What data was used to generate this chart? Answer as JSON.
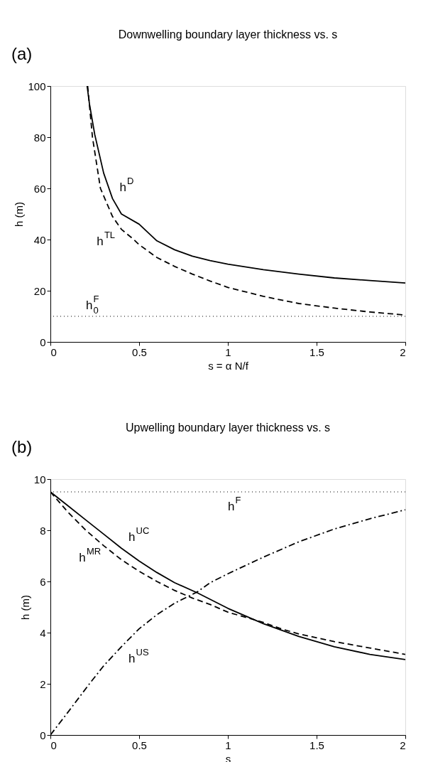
{
  "chart_data": [
    {
      "type": "line",
      "title": "Downwelling boundary layer thickness vs. s",
      "xlabel": "s = α N/f",
      "ylabel": "h (m)",
      "xlim": [
        0,
        2
      ],
      "ylim": [
        0,
        100
      ],
      "xticks": [
        0,
        0.5,
        1,
        1.5,
        2
      ],
      "yticks": [
        0,
        20,
        40,
        60,
        80,
        100
      ],
      "grid": false,
      "series": [
        {
          "name": "h$^{D}$",
          "color": "#000000",
          "line_style": "solid",
          "x": [
            0.207,
            0.22,
            0.25,
            0.3,
            0.35,
            0.4,
            0.5,
            0.6,
            0.7,
            0.8,
            0.9,
            1.0,
            1.2,
            1.4,
            1.6,
            1.8,
            2.0
          ],
          "values": [
            100,
            93,
            81,
            66,
            56,
            50,
            46,
            39.5,
            36,
            33.5,
            31.8,
            30.4,
            28.2,
            26.5,
            25,
            24,
            23
          ]
        },
        {
          "name": "h$^{TL}$",
          "color": "#000000",
          "line_style": "dashed",
          "x": [
            0.21,
            0.237,
            0.282,
            0.35,
            0.4,
            0.47,
            0.5,
            0.6,
            0.7,
            0.8,
            0.9,
            1.0,
            1.2,
            1.4,
            1.6,
            1.8,
            2.0
          ],
          "values": [
            100,
            80,
            60,
            49,
            44,
            40,
            38,
            33,
            29.5,
            26.5,
            23.8,
            21.3,
            17.8,
            15,
            13.2,
            11.7,
            10.5
          ]
        }
      ],
      "ref_lines": [
        {
          "axis": "y",
          "value": 10,
          "label": "h$_{0}$$^{F}$",
          "color": "#000000",
          "line_style": "dotted"
        }
      ],
      "annotations": [
        "(a)"
      ]
    },
    {
      "type": "line",
      "title": "Upwelling boundary layer thickness vs. s",
      "xlabel": "s",
      "ylabel": "h (m)",
      "xlim": [
        0,
        2
      ],
      "ylim": [
        0,
        10
      ],
      "xticks": [
        0,
        0.5,
        1,
        1.5,
        2
      ],
      "yticks": [
        0,
        2,
        4,
        6,
        8,
        10
      ],
      "grid": false,
      "series": [
        {
          "name": "h$^{UC}$",
          "color": "#000000",
          "line_style": "solid",
          "x": [
            0,
            0.1,
            0.2,
            0.3,
            0.4,
            0.5,
            0.6,
            0.7,
            0.83,
            1.0,
            1.2,
            1.3,
            1.4,
            1.6,
            1.8,
            2.0
          ],
          "values": [
            9.5,
            8.95,
            8.4,
            7.85,
            7.3,
            6.8,
            6.35,
            5.95,
            5.55,
            4.95,
            4.35,
            4.1,
            3.85,
            3.45,
            3.15,
            2.95
          ]
        },
        {
          "name": "h$^{MR}$",
          "color": "#000000",
          "line_style": "dashed",
          "x": [
            0,
            0.05,
            0.1,
            0.2,
            0.3,
            0.4,
            0.5,
            0.6,
            0.7,
            0.8,
            0.9,
            1.0,
            1.2,
            1.3,
            1.4,
            1.6,
            1.8,
            2.0
          ],
          "values": [
            9.5,
            9.1,
            8.7,
            8.0,
            7.4,
            6.85,
            6.4,
            6.0,
            5.65,
            5.35,
            5.1,
            4.8,
            4.4,
            4.15,
            3.95,
            3.65,
            3.4,
            3.15
          ]
        },
        {
          "name": "h$^{US}$",
          "color": "#000000",
          "line_style": "dashdot",
          "x": [
            0,
            0.1,
            0.22,
            0.3,
            0.4,
            0.5,
            0.6,
            0.7,
            0.83,
            0.9,
            1.0,
            1.2,
            1.4,
            1.6,
            1.8,
            2.0
          ],
          "values": [
            0,
            0.9,
            2,
            2.7,
            3.45,
            4.15,
            4.7,
            5.15,
            5.6,
            5.95,
            6.3,
            6.95,
            7.55,
            8.05,
            8.45,
            8.8
          ]
        }
      ],
      "ref_lines": [
        {
          "axis": "y",
          "value": 9.5,
          "label": "h$^{F}$",
          "color": "#000000",
          "line_style": "dotted"
        }
      ],
      "annotations": [
        "(b)"
      ]
    }
  ]
}
